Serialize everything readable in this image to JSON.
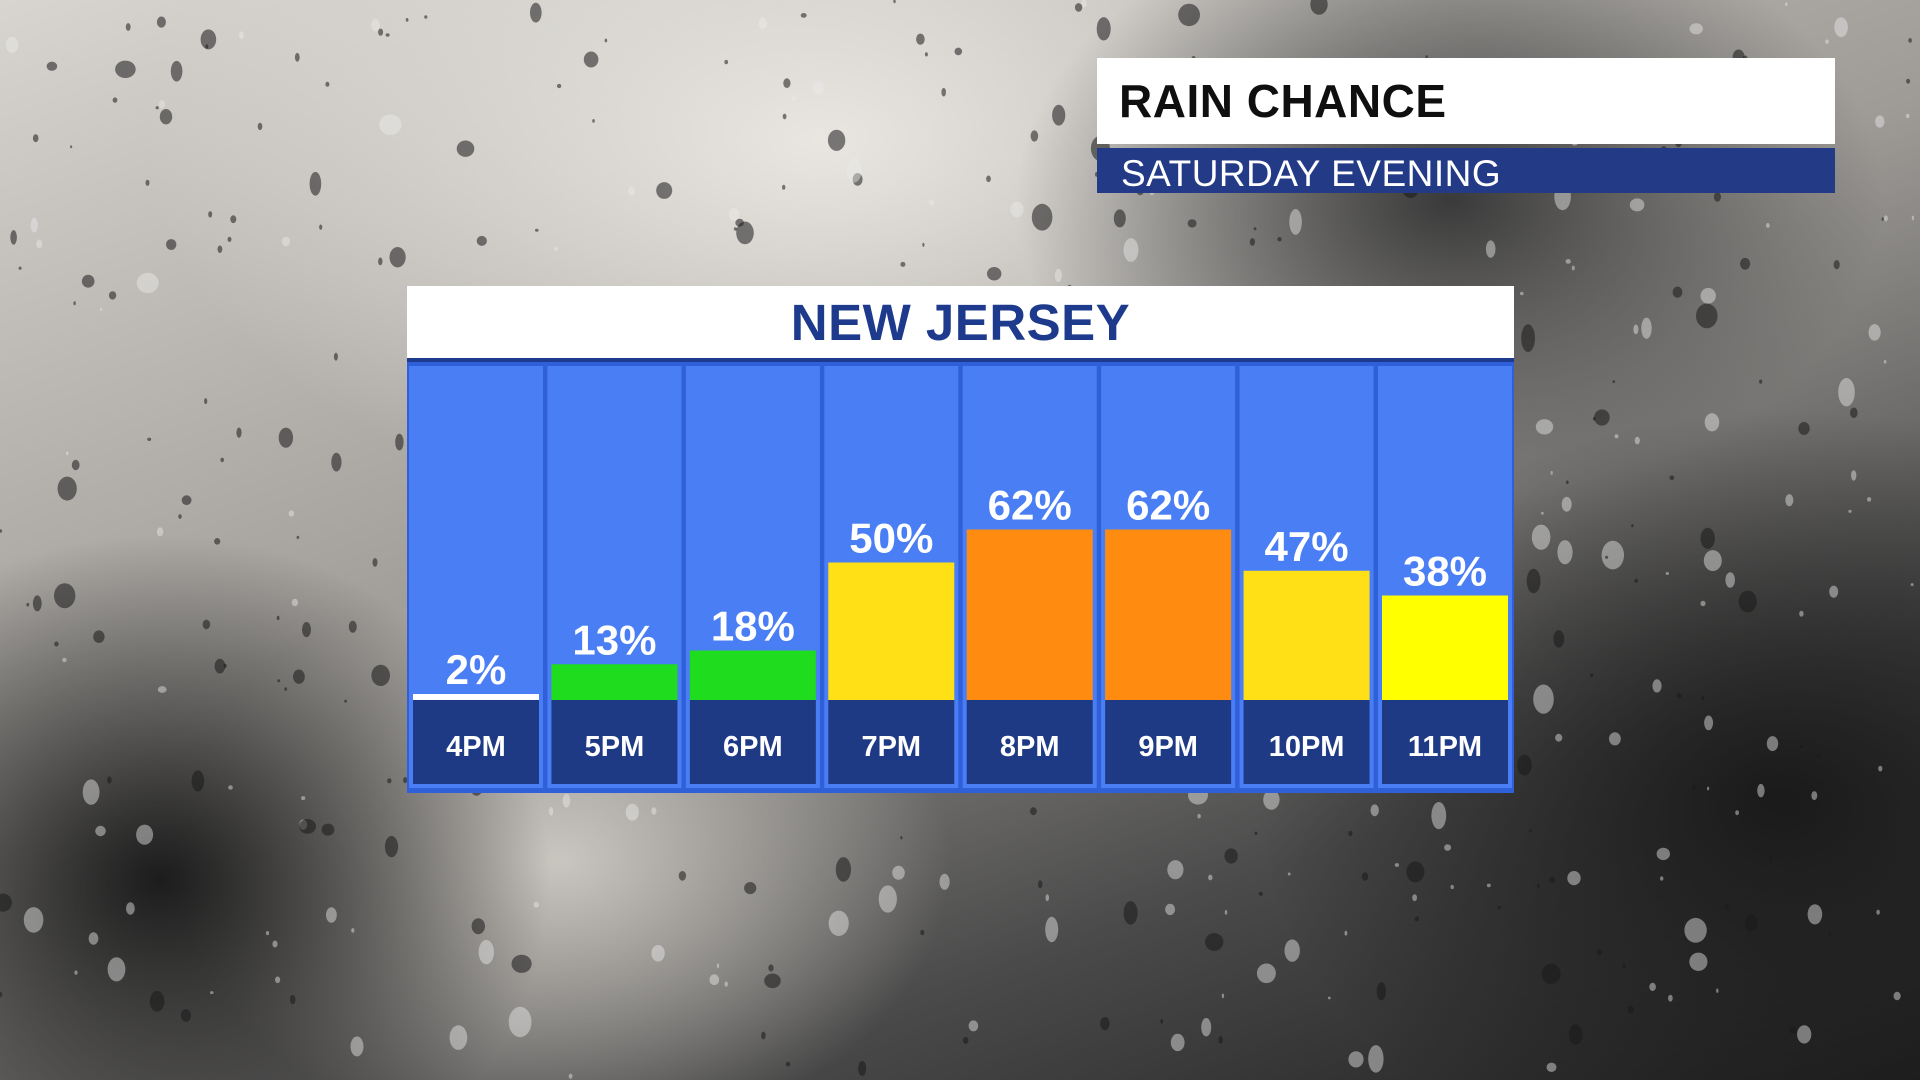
{
  "header": {
    "title": "RAIN CHANCE",
    "subtitle": "SATURDAY EVENING"
  },
  "colors": {
    "column_bg": "#4a7ef5",
    "column_border": "#2f5fd9",
    "label_bg": "#1f3a85",
    "title_blue": "#1d3a8c",
    "low": "#ffffff",
    "green": "#1fdc1f",
    "yellow": "#ffe016",
    "bright_yellow": "#ffff00",
    "orange": "#ff8c10"
  },
  "chart_data": {
    "type": "bar",
    "title": "NEW JERSEY",
    "categories": [
      "4PM",
      "5PM",
      "6PM",
      "7PM",
      "8PM",
      "9PM",
      "10PM",
      "11PM"
    ],
    "values": [
      2,
      13,
      18,
      50,
      62,
      62,
      47,
      38
    ],
    "value_labels": [
      "2%",
      "13%",
      "18%",
      "50%",
      "62%",
      "62%",
      "47%",
      "38%"
    ],
    "bar_colors": [
      "#ffffff",
      "#1fdc1f",
      "#1fdc1f",
      "#ffe016",
      "#ff8c10",
      "#ff8c10",
      "#ffe016",
      "#ffff00"
    ],
    "ylim": [
      0,
      100
    ],
    "grid": false,
    "legend": "none"
  }
}
